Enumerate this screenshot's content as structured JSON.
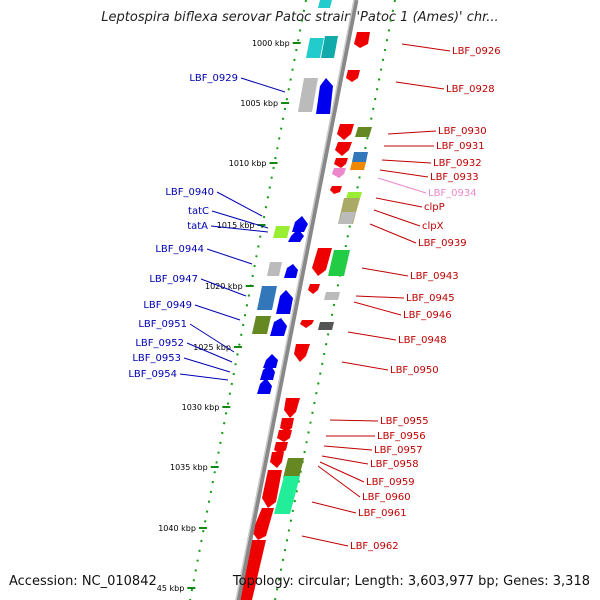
{
  "header": {
    "title": "Leptospira biflexa serovar Patoc strain 'Patoc 1 (Ames)' chr..."
  },
  "footer": {
    "accession": "Accession: NC_010842",
    "topology": "Topology: circular; Length: 3,603,977 bp; Genes: 3,318"
  },
  "colors": {
    "backbone": "#8a8a8a",
    "forward_label": "#c00000",
    "reverse_label": "#0000b0",
    "highlight_label": "#ee88cc",
    "tick": "#118811"
  },
  "ticks": [
    "1000 kbp",
    "1005 kbp",
    "1010 kbp",
    "1015 kbp",
    "1020 kbp",
    "1025 kbp",
    "1030 kbp",
    "1035 kbp",
    "1040 kbp",
    "45 kbp"
  ],
  "genes_reverse": [
    {
      "label": "LBF_0929"
    },
    {
      "label": "LBF_0940"
    },
    {
      "label": "tatC"
    },
    {
      "label": "tatA"
    },
    {
      "label": "LBF_0944"
    },
    {
      "label": "LBF_0947"
    },
    {
      "label": "LBF_0949"
    },
    {
      "label": "LBF_0951"
    },
    {
      "label": "LBF_0952"
    },
    {
      "label": "LBF_0953"
    },
    {
      "label": "LBF_0954"
    }
  ],
  "genes_forward": [
    {
      "label": "LBF_0926"
    },
    {
      "label": "LBF_0928"
    },
    {
      "label": "LBF_0930"
    },
    {
      "label": "LBF_0931"
    },
    {
      "label": "LBF_0932"
    },
    {
      "label": "LBF_0933"
    },
    {
      "label": "LBF_0934"
    },
    {
      "label": "clpP"
    },
    {
      "label": "clpX"
    },
    {
      "label": "LBF_0939"
    },
    {
      "label": "LBF_0943"
    },
    {
      "label": "LBF_0945"
    },
    {
      "label": "LBF_0946"
    },
    {
      "label": "LBF_0948"
    },
    {
      "label": "LBF_0950"
    },
    {
      "label": "LBF_0955"
    },
    {
      "label": "LBF_0956"
    },
    {
      "label": "LBF_0957"
    },
    {
      "label": "LBF_0958"
    },
    {
      "label": "LBF_0959"
    },
    {
      "label": "LBF_0960"
    },
    {
      "label": "LBF_0961"
    },
    {
      "label": "LBF_0962"
    }
  ]
}
